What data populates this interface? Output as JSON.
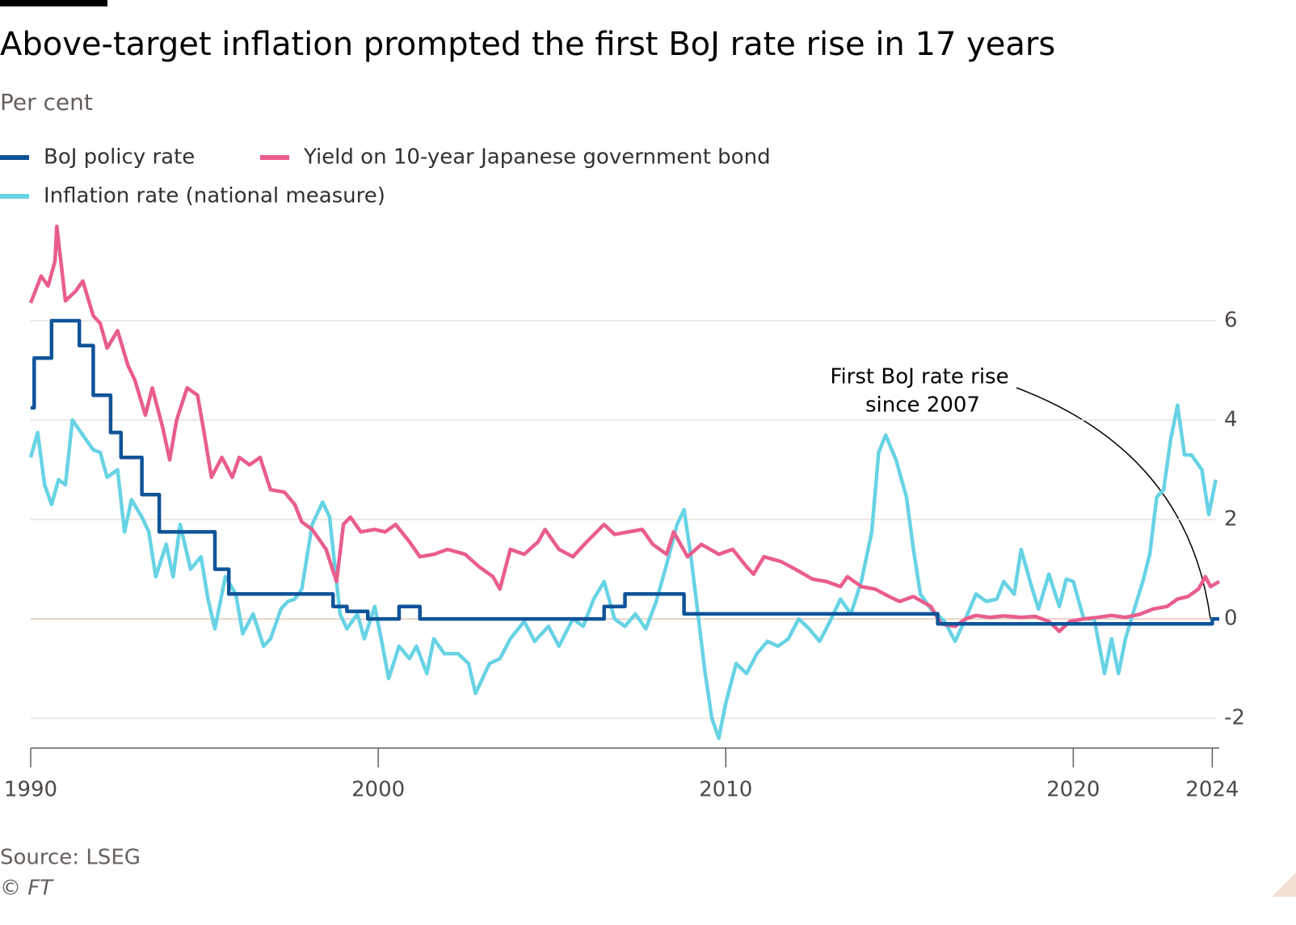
{
  "chart_data": {
    "type": "line",
    "title": "Above-target inflation prompted the first BoJ rate rise in 17 years",
    "subtitle": "Per cent",
    "source": "Source: LSEG",
    "credit": "© FT",
    "annotation": [
      "First BoJ rate rise",
      "since 2007"
    ],
    "xlim": [
      1990,
      2024.2
    ],
    "xticks": [
      1990,
      2000,
      2010,
      2020,
      2024
    ],
    "ylim": [
      -2.6,
      8
    ],
    "yticks": [
      6,
      4,
      2,
      0,
      -2
    ],
    "grid": true,
    "series": [
      {
        "name": "BoJ policy rate",
        "color": "#0f5499",
        "x": [
          1990,
          1990.1,
          1990.1,
          1990.6,
          1990.6,
          1991.4,
          1991.4,
          1991.8,
          1991.8,
          1992.3,
          1992.3,
          1992.6,
          1992.6,
          1993.2,
          1993.2,
          1993.7,
          1993.7,
          1995.3,
          1995.3,
          1995.7,
          1995.7,
          1998.7,
          1998.7,
          1999.1,
          1999.1,
          1999.7,
          1999.7,
          2000.6,
          2000.6,
          2001.2,
          2001.2,
          2006.5,
          2006.5,
          2007.1,
          2007.1,
          2008.8,
          2008.8,
          2016.1,
          2016.1,
          2024.0,
          2024.0,
          2024.2
        ],
        "values": [
          4.25,
          4.25,
          5.25,
          5.25,
          6.0,
          6.0,
          5.5,
          5.5,
          4.5,
          4.5,
          3.75,
          3.75,
          3.25,
          3.25,
          2.5,
          2.5,
          1.75,
          1.75,
          1.0,
          1.0,
          0.5,
          0.5,
          0.25,
          0.25,
          0.15,
          0.15,
          0,
          0,
          0.25,
          0.25,
          0,
          0,
          0.25,
          0.25,
          0.5,
          0.5,
          0.1,
          0.1,
          -0.1,
          -0.1,
          0,
          0
        ]
      },
      {
        "name": "Yield on 10-year Japanese government bond",
        "color": "#e95d8c",
        "x": [
          1990.0,
          1990.3,
          1990.5,
          1990.7,
          1990.75,
          1991.0,
          1991.3,
          1991.5,
          1991.8,
          1992.0,
          1992.2,
          1992.5,
          1992.8,
          1993.0,
          1993.3,
          1993.5,
          1993.8,
          1994.0,
          1994.2,
          1994.5,
          1994.8,
          1995.0,
          1995.2,
          1995.5,
          1995.8,
          1996.0,
          1996.3,
          1996.6,
          1996.9,
          1997.3,
          1997.6,
          1997.8,
          1998.1,
          1998.5,
          1998.8,
          1999.0,
          1999.2,
          1999.5,
          1999.9,
          2000.2,
          2000.5,
          2000.9,
          2001.2,
          2001.6,
          2002.0,
          2002.5,
          2002.9,
          2003.3,
          2003.5,
          2003.8,
          2004.2,
          2004.6,
          2004.8,
          2005.2,
          2005.6,
          2006.0,
          2006.5,
          2006.8,
          2007.2,
          2007.6,
          2007.9,
          2008.3,
          2008.5,
          2008.9,
          2009.3,
          2009.8,
          2010.2,
          2010.6,
          2010.8,
          2011.1,
          2011.6,
          2012.0,
          2012.5,
          2012.9,
          2013.3,
          2013.5,
          2013.9,
          2014.3,
          2014.7,
          2015.0,
          2015.4,
          2015.9,
          2016.2,
          2016.6,
          2016.9,
          2017.2,
          2017.6,
          2018.0,
          2018.5,
          2018.9,
          2019.3,
          2019.6,
          2019.9,
          2020.3,
          2020.7,
          2021.1,
          2021.5,
          2021.9,
          2022.3,
          2022.7,
          2023.0,
          2023.3,
          2023.6,
          2023.8,
          2023.95,
          2024.2
        ],
        "values": [
          6.36,
          6.9,
          6.7,
          7.2,
          7.9,
          6.4,
          6.6,
          6.8,
          6.1,
          5.95,
          5.45,
          5.8,
          5.1,
          4.8,
          4.1,
          4.65,
          3.85,
          3.2,
          4.0,
          4.65,
          4.5,
          3.7,
          2.85,
          3.25,
          2.85,
          3.25,
          3.1,
          3.25,
          2.6,
          2.55,
          2.3,
          1.95,
          1.8,
          1.4,
          0.75,
          1.9,
          2.05,
          1.75,
          1.8,
          1.75,
          1.9,
          1.55,
          1.25,
          1.3,
          1.4,
          1.3,
          1.05,
          0.85,
          0.6,
          1.4,
          1.3,
          1.55,
          1.8,
          1.4,
          1.25,
          1.55,
          1.9,
          1.7,
          1.75,
          1.8,
          1.5,
          1.3,
          1.75,
          1.25,
          1.5,
          1.3,
          1.4,
          1.05,
          0.9,
          1.25,
          1.15,
          1.0,
          0.8,
          0.75,
          0.65,
          0.85,
          0.65,
          0.6,
          0.45,
          0.35,
          0.45,
          0.25,
          -0.1,
          -0.15,
          0.0,
          0.07,
          0.03,
          0.06,
          0.03,
          0.05,
          -0.05,
          -0.25,
          -0.05,
          0.0,
          0.03,
          0.07,
          0.03,
          0.09,
          0.2,
          0.25,
          0.4,
          0.45,
          0.6,
          0.85,
          0.65,
          0.75
        ]
      },
      {
        "name": "Inflation rate (national measure)",
        "color": "#67d3e4",
        "x": [
          1990.0,
          1990.2,
          1990.4,
          1990.6,
          1990.8,
          1991.0,
          1991.2,
          1991.5,
          1991.8,
          1992.0,
          1992.2,
          1992.5,
          1992.7,
          1992.9,
          1993.2,
          1993.4,
          1993.6,
          1993.9,
          1994.1,
          1994.3,
          1994.6,
          1994.9,
          1995.1,
          1995.3,
          1995.6,
          1995.9,
          1996.1,
          1996.4,
          1996.7,
          1996.9,
          1997.2,
          1997.4,
          1997.6,
          1997.8,
          1998.1,
          1998.4,
          1998.6,
          1998.9,
          1999.1,
          1999.4,
          1999.6,
          1999.9,
          2000.1,
          2000.3,
          2000.6,
          2000.9,
          2001.1,
          2001.4,
          2001.6,
          2001.9,
          2002.3,
          2002.6,
          2002.8,
          2003.2,
          2003.5,
          2003.8,
          2004.2,
          2004.5,
          2004.9,
          2005.2,
          2005.6,
          2005.9,
          2006.2,
          2006.5,
          2006.8,
          2007.1,
          2007.4,
          2007.7,
          2008.0,
          2008.3,
          2008.6,
          2008.8,
          2009.0,
          2009.2,
          2009.4,
          2009.6,
          2009.8,
          2010.0,
          2010.3,
          2010.6,
          2010.9,
          2011.2,
          2011.5,
          2011.8,
          2012.1,
          2012.4,
          2012.7,
          2013.0,
          2013.3,
          2013.6,
          2013.9,
          2014.2,
          2014.4,
          2014.6,
          2014.9,
          2015.2,
          2015.4,
          2015.6,
          2015.9,
          2016.3,
          2016.6,
          2016.9,
          2017.2,
          2017.5,
          2017.8,
          2018.0,
          2018.3,
          2018.5,
          2018.8,
          2019.0,
          2019.3,
          2019.6,
          2019.8,
          2020.0,
          2020.3,
          2020.6,
          2020.9,
          2021.1,
          2021.3,
          2021.5,
          2021.8,
          2022.0,
          2022.2,
          2022.4,
          2022.6,
          2022.8,
          2023.0,
          2023.2,
          2023.4,
          2023.7,
          2023.9,
          2024.1
        ],
        "values": [
          3.25,
          3.75,
          2.7,
          2.3,
          2.8,
          2.7,
          4.0,
          3.7,
          3.4,
          3.35,
          2.85,
          3.0,
          1.75,
          2.4,
          2.05,
          1.75,
          0.85,
          1.5,
          0.85,
          1.9,
          1.0,
          1.25,
          0.4,
          -0.2,
          0.85,
          0.5,
          -0.3,
          0.1,
          -0.55,
          -0.4,
          0.2,
          0.35,
          0.4,
          0.6,
          1.9,
          2.35,
          2.05,
          0.1,
          -0.2,
          0.1,
          -0.4,
          0.25,
          -0.45,
          -1.2,
          -0.55,
          -0.8,
          -0.55,
          -1.1,
          -0.4,
          -0.7,
          -0.7,
          -0.9,
          -1.5,
          -0.9,
          -0.8,
          -0.4,
          -0.05,
          -0.45,
          -0.15,
          -0.55,
          0.0,
          -0.15,
          0.4,
          0.75,
          0.0,
          -0.15,
          0.1,
          -0.2,
          0.35,
          1.1,
          1.9,
          2.2,
          1.25,
          0.1,
          -1.05,
          -2.0,
          -2.4,
          -1.7,
          -0.9,
          -1.1,
          -0.7,
          -0.45,
          -0.55,
          -0.4,
          0.0,
          -0.2,
          -0.45,
          -0.05,
          0.4,
          0.1,
          0.75,
          1.75,
          3.35,
          3.7,
          3.2,
          2.45,
          1.4,
          0.5,
          0.2,
          -0.05,
          -0.45,
          0.0,
          0.5,
          0.35,
          0.4,
          0.75,
          0.5,
          1.4,
          0.65,
          0.2,
          0.9,
          0.25,
          0.8,
          0.75,
          0.0,
          0.0,
          -1.1,
          -0.4,
          -1.1,
          -0.4,
          0.3,
          0.75,
          1.3,
          2.45,
          2.6,
          3.6,
          4.3,
          3.3,
          3.3,
          3.0,
          2.1,
          2.8
        ]
      }
    ]
  }
}
